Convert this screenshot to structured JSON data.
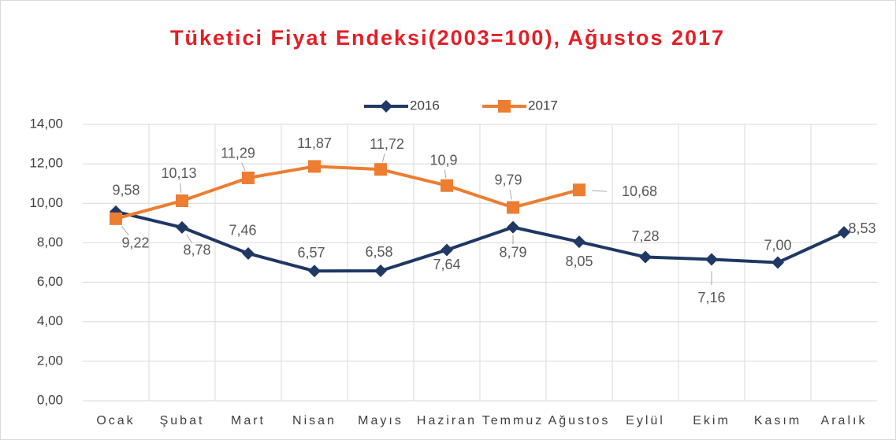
{
  "chart_data": {
    "type": "line",
    "title": "Tüketici Fiyat Endeksi(2003=100), Ağustos 2017",
    "categories": [
      "Ocak",
      "Şubat",
      "Mart",
      "Nisan",
      "Mayıs",
      "Haziran",
      "Temmuz",
      "Ağustos",
      "Eylül",
      "Ekim",
      "Kasım",
      "Aralık"
    ],
    "series": [
      {
        "name": "2016",
        "color": "#1f3864",
        "marker": "diamond",
        "values": [
          9.58,
          8.78,
          7.46,
          6.57,
          6.58,
          7.64,
          8.79,
          8.05,
          7.28,
          7.16,
          7.0,
          8.53
        ],
        "value_labels": [
          "9,58",
          "8,78",
          "7,46",
          "6,57",
          "6,58",
          "7,64",
          "8,79",
          "8,05",
          "7,28",
          "7,16",
          "7,00",
          "8,53"
        ]
      },
      {
        "name": "2017",
        "color": "#ed7d31",
        "marker": "square",
        "values": [
          9.22,
          10.13,
          11.29,
          11.87,
          11.72,
          10.9,
          9.79,
          10.68,
          null,
          null,
          null,
          null
        ],
        "value_labels": [
          "9,22",
          "10,13",
          "11,29",
          "11,87",
          "11,72",
          "10,9",
          "9,79",
          "10,68",
          null,
          null,
          null,
          null
        ]
      }
    ],
    "ylim": [
      0,
      14
    ],
    "yticks": [
      {
        "value": 0,
        "label": "0,00"
      },
      {
        "value": 2,
        "label": "2,00"
      },
      {
        "value": 4,
        "label": "4,00"
      },
      {
        "value": 6,
        "label": "6,00"
      },
      {
        "value": 8,
        "label": "8,00"
      },
      {
        "value": 10,
        "label": "10,00"
      },
      {
        "value": 12,
        "label": "12,00"
      },
      {
        "value": 14,
        "label": "14,00"
      }
    ],
    "grid": true,
    "legend": "top"
  }
}
